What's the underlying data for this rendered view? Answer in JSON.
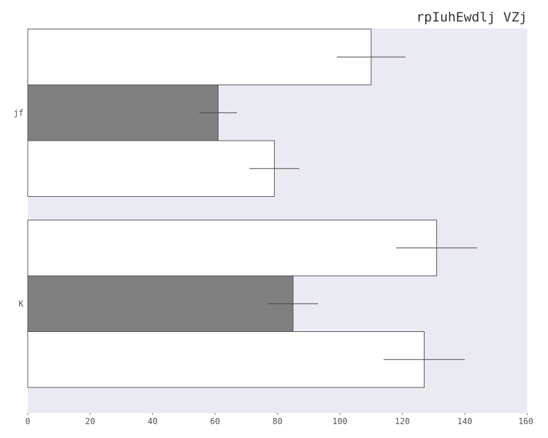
{
  "chart_data": {
    "type": "bar",
    "orientation": "horizontal",
    "title": "rpIuhEwdlj VZj",
    "xlabel": "",
    "ylabel": "",
    "xlim": [
      0,
      160
    ],
    "xticks": [
      "0",
      "20",
      "40",
      "60",
      "80",
      "100",
      "120",
      "140",
      "160"
    ],
    "categories": [
      "jf",
      "K"
    ],
    "series": [
      {
        "values": [
          110,
          131
        ],
        "errors": [
          11,
          13
        ],
        "color": "#ffffff"
      },
      {
        "values": [
          61,
          85
        ],
        "errors": [
          6,
          8
        ],
        "color": "#808080"
      },
      {
        "values": [
          79,
          127
        ],
        "errors": [
          8,
          13
        ],
        "color": "#ffffff"
      }
    ],
    "grid": false,
    "plot_background": "#eaeaf2",
    "edge_color": "#555555"
  }
}
